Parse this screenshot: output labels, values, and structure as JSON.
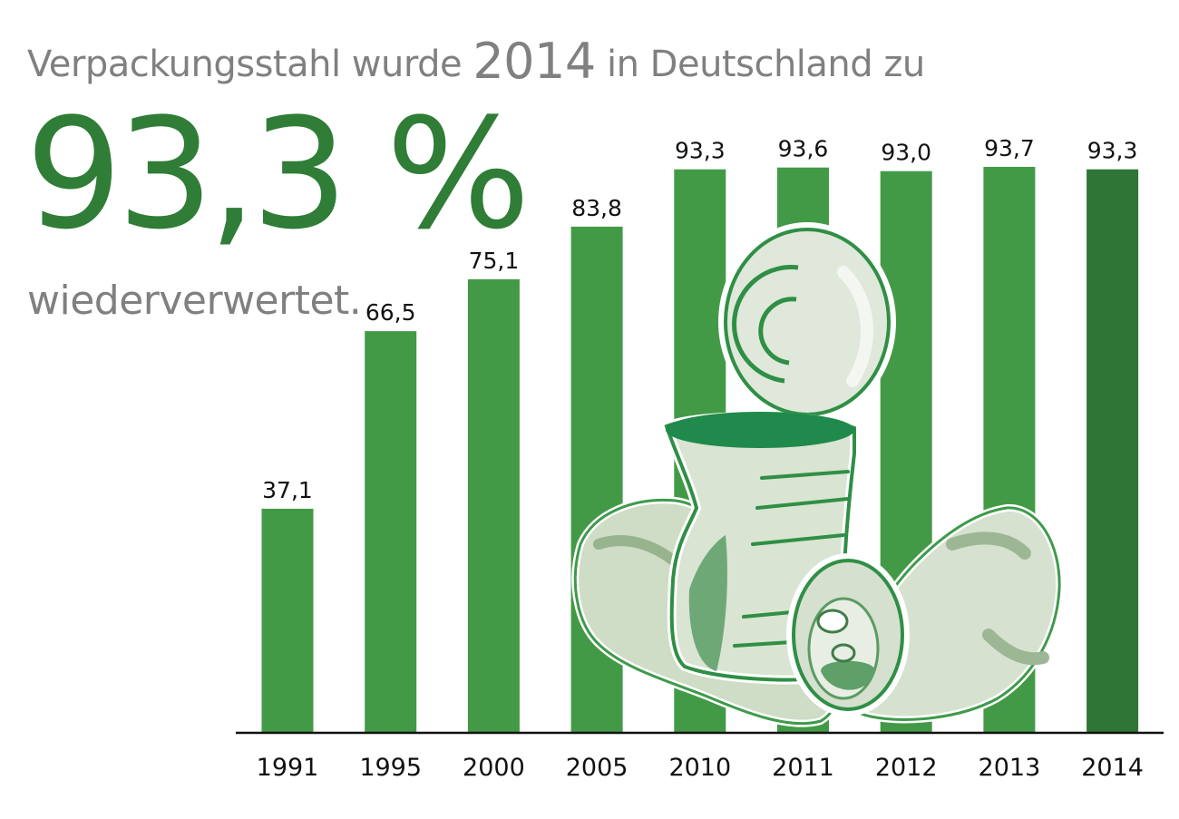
{
  "headline": {
    "prefix": "Verpackungsstahl wurde",
    "year": "2014",
    "suffix": "in Deutschland zu"
  },
  "highlight": {
    "value": "93,3 %"
  },
  "subline": "wiederverwertet.",
  "colors": {
    "bar": "#439a46",
    "bar_highlight": "#2f7535",
    "text_gray": "#808080",
    "text_green": "#2f7d36"
  },
  "chart_data": {
    "type": "bar",
    "categories": [
      "1991",
      "1995",
      "2000",
      "2005",
      "2010",
      "2011",
      "2012",
      "2013",
      "2014"
    ],
    "values": [
      37.1,
      66.5,
      75.1,
      83.8,
      93.3,
      93.6,
      93.0,
      93.7,
      93.3
    ],
    "value_labels": [
      "37,1",
      "66,5",
      "75,1",
      "83,8",
      "93,3",
      "93,6",
      "93,0",
      "93,7",
      "93,3"
    ],
    "highlight_category": "2014",
    "ylim": [
      0,
      93.7
    ],
    "grid": false,
    "legend": "none"
  }
}
